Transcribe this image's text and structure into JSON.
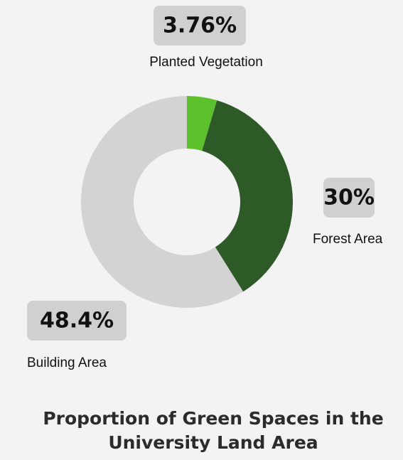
{
  "chart_data": {
    "type": "donut",
    "title": "Proportion of Green Spaces in the University Land Area",
    "categories": [
      "Planted Vegetation",
      "Forest Area",
      "Building Area"
    ],
    "values": [
      3.76,
      30,
      48.4
    ],
    "value_labels": [
      "3.76%",
      "30%",
      "48.4%"
    ],
    "colors": [
      "#5cc12d",
      "#2d5a27",
      "#d3d3d3"
    ]
  }
}
